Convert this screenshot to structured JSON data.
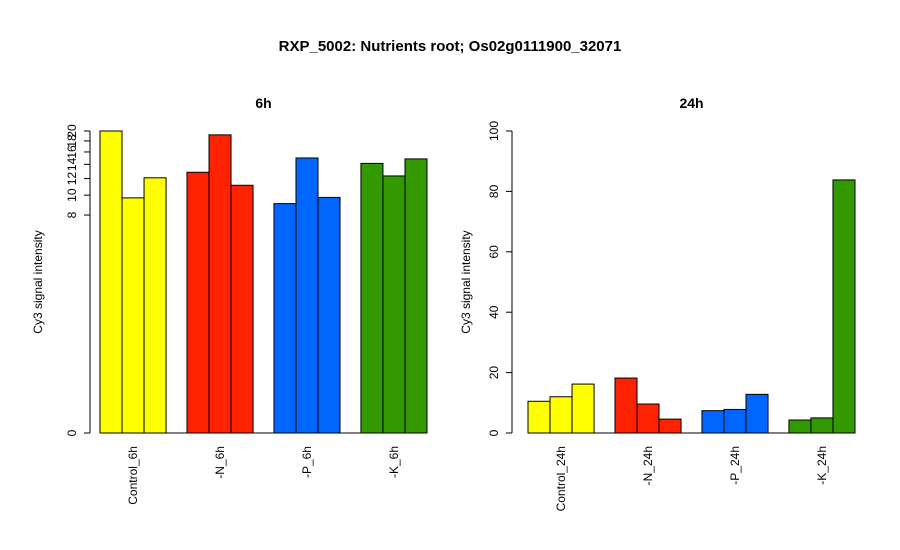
{
  "title": "RXP_5002: Nutrients root; Os02g0111900_32071",
  "chart_data": [
    {
      "type": "bar",
      "title": "6h",
      "ylabel": "Cy3 signal intensity",
      "xlabel": "",
      "ylim": [
        0,
        20
      ],
      "yscale": "log",
      "yticks": [
        0,
        8,
        10,
        12,
        14,
        16,
        18,
        20
      ],
      "categories": [
        "Control_6h",
        "-N_6h",
        "-P_6h",
        "-K_6h"
      ],
      "colors": [
        "#ffff00",
        "#ff2200",
        "#0066ff",
        "#339900"
      ],
      "values": [
        [
          20.0,
          9.7,
          12.1
        ],
        [
          12.85,
          19.2,
          11.15
        ],
        [
          9.1,
          15.0,
          9.75
        ],
        [
          14.15,
          12.35,
          14.85
        ]
      ]
    },
    {
      "type": "bar",
      "title": "24h",
      "ylabel": "Cy3 signal intensity",
      "xlabel": "",
      "ylim": [
        0,
        100
      ],
      "yscale": "linear",
      "yticks": [
        0,
        20,
        40,
        60,
        80,
        100
      ],
      "categories": [
        "Control_24h",
        "-N_24h",
        "-P_24h",
        "-K_24h"
      ],
      "colors": [
        "#ffff00",
        "#ff2200",
        "#0066ff",
        "#339900"
      ],
      "values": [
        [
          10.5,
          12.0,
          16.2
        ],
        [
          18.2,
          9.6,
          4.6
        ],
        [
          7.4,
          7.8,
          12.8
        ],
        [
          4.3,
          5.0,
          83.8
        ]
      ]
    }
  ]
}
